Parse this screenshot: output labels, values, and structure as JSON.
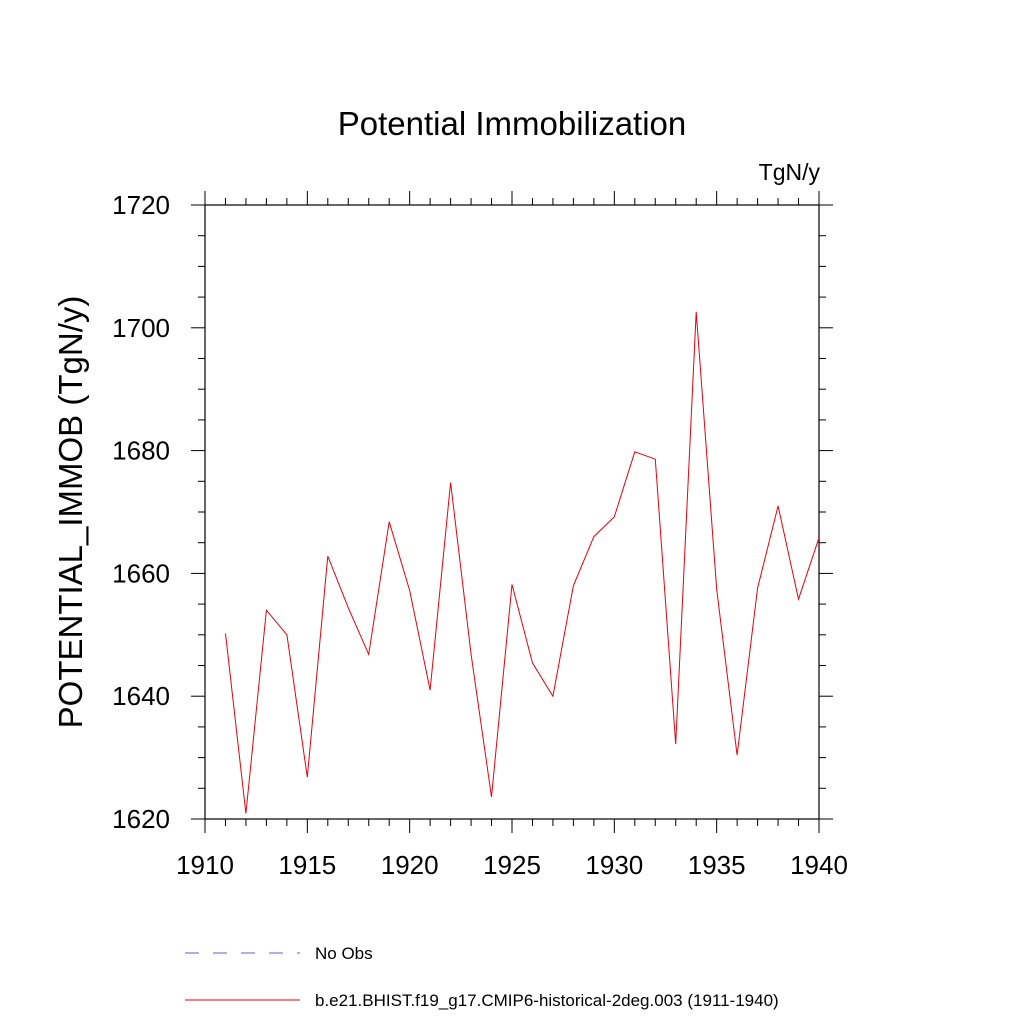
{
  "chart_data": {
    "type": "line",
    "title": "Potential Immobilization",
    "units_label": "TgN/y",
    "ylabel": "POTENTIAL_IMMOB  (TgN/y)",
    "xlabel": "",
    "xlim": [
      1910,
      1940
    ],
    "ylim": [
      1620,
      1720
    ],
    "x_ticks": [
      "1910",
      "1915",
      "1920",
      "1925",
      "1930",
      "1935",
      "1940"
    ],
    "y_ticks": [
      "1620",
      "1640",
      "1660",
      "1680",
      "1700",
      "1720"
    ],
    "grid": false,
    "legend_position": "bottom",
    "legend": [
      {
        "label": "No Obs",
        "color": "#6a5acd",
        "style": "dashed"
      },
      {
        "label": "b.e21.BHIST.f19_g17.CMIP6-historical-2deg.003 (1911-1940)",
        "color": "#e8000b",
        "style": "solid"
      }
    ],
    "series": [
      {
        "color": "#e8000b",
        "x": [
          1911,
          1912,
          1913,
          1914,
          1915,
          1916,
          1917,
          1918,
          1919,
          1920,
          1921,
          1922,
          1923,
          1924,
          1925,
          1926,
          1927,
          1928,
          1929,
          1930,
          1931,
          1932,
          1933,
          1934,
          1935,
          1936,
          1937,
          1938,
          1939,
          1940
        ],
        "values": [
          1650.2,
          1620.9,
          1654.0,
          1650.0,
          1626.8,
          1662.8,
          1654.4,
          1646.8,
          1668.4,
          1657.2,
          1641.0,
          1674.8,
          1646.8,
          1623.6,
          1658.2,
          1645.4,
          1640.0,
          1658.0,
          1666.0,
          1669.2,
          1679.8,
          1678.6,
          1632.2,
          1702.6,
          1657.4,
          1630.4,
          1657.6,
          1671.0,
          1655.8,
          1665.8
        ]
      }
    ]
  }
}
